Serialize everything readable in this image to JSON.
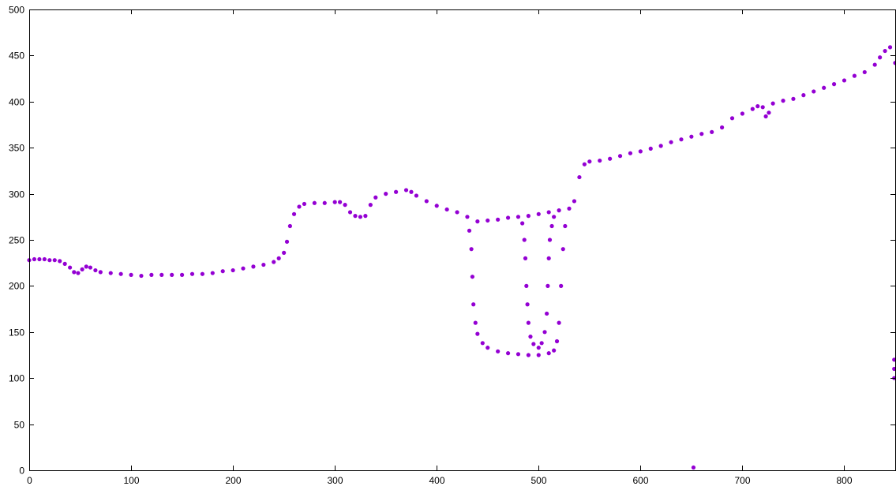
{
  "chart_data": {
    "type": "scatter",
    "title": "",
    "xlabel": "",
    "ylabel": "",
    "xlim": [
      0,
      850
    ],
    "ylim": [
      0,
      500
    ],
    "xticks": [
      0,
      100,
      200,
      300,
      400,
      500,
      600,
      700,
      800
    ],
    "yticks": [
      0,
      50,
      100,
      150,
      200,
      250,
      300,
      350,
      400,
      450,
      500
    ],
    "grid": false,
    "legend": "none",
    "series": [
      {
        "color": "#9400d3",
        "marker": "dot",
        "points": [
          [
            0,
            228
          ],
          [
            5,
            229
          ],
          [
            10,
            229
          ],
          [
            15,
            229
          ],
          [
            20,
            228
          ],
          [
            25,
            228
          ],
          [
            30,
            227
          ],
          [
            35,
            224
          ],
          [
            40,
            220
          ],
          [
            44,
            215
          ],
          [
            48,
            214
          ],
          [
            52,
            218
          ],
          [
            56,
            221
          ],
          [
            60,
            220
          ],
          [
            65,
            217
          ],
          [
            70,
            215
          ],
          [
            80,
            214
          ],
          [
            90,
            213
          ],
          [
            100,
            212
          ],
          [
            110,
            211
          ],
          [
            120,
            212
          ],
          [
            130,
            212
          ],
          [
            140,
            212
          ],
          [
            150,
            212
          ],
          [
            160,
            213
          ],
          [
            170,
            213
          ],
          [
            180,
            214
          ],
          [
            190,
            216
          ],
          [
            200,
            217
          ],
          [
            210,
            219
          ],
          [
            220,
            221
          ],
          [
            230,
            223
          ],
          [
            240,
            226
          ],
          [
            245,
            230
          ],
          [
            250,
            236
          ],
          [
            253,
            248
          ],
          [
            256,
            265
          ],
          [
            260,
            278
          ],
          [
            265,
            286
          ],
          [
            270,
            289
          ],
          [
            280,
            290
          ],
          [
            290,
            290
          ],
          [
            300,
            291
          ],
          [
            305,
            291
          ],
          [
            310,
            288
          ],
          [
            315,
            280
          ],
          [
            320,
            276
          ],
          [
            325,
            275
          ],
          [
            330,
            276
          ],
          [
            335,
            288
          ],
          [
            340,
            296
          ],
          [
            350,
            300
          ],
          [
            360,
            302
          ],
          [
            370,
            304
          ],
          [
            375,
            302
          ],
          [
            380,
            298
          ],
          [
            390,
            292
          ],
          [
            400,
            287
          ],
          [
            410,
            283
          ],
          [
            420,
            280
          ],
          [
            430,
            275
          ],
          [
            440,
            270
          ],
          [
            450,
            271
          ],
          [
            460,
            272
          ],
          [
            470,
            274
          ],
          [
            480,
            275
          ],
          [
            490,
            276
          ],
          [
            500,
            278
          ],
          [
            510,
            280
          ],
          [
            520,
            282
          ],
          [
            530,
            284
          ],
          [
            535,
            292
          ],
          [
            540,
            318
          ],
          [
            545,
            332
          ],
          [
            550,
            335
          ],
          [
            560,
            336
          ],
          [
            570,
            338
          ],
          [
            580,
            341
          ],
          [
            590,
            344
          ],
          [
            600,
            346
          ],
          [
            610,
            349
          ],
          [
            620,
            352
          ],
          [
            630,
            356
          ],
          [
            640,
            359
          ],
          [
            650,
            362
          ],
          [
            660,
            365
          ],
          [
            670,
            367
          ],
          [
            680,
            372
          ],
          [
            690,
            382
          ],
          [
            700,
            387
          ],
          [
            710,
            392
          ],
          [
            715,
            395
          ],
          [
            720,
            394
          ],
          [
            723,
            384
          ],
          [
            726,
            388
          ],
          [
            730,
            398
          ],
          [
            740,
            401
          ],
          [
            750,
            403
          ],
          [
            760,
            407
          ],
          [
            770,
            411
          ],
          [
            780,
            415
          ],
          [
            790,
            419
          ],
          [
            800,
            423
          ],
          [
            810,
            428
          ],
          [
            820,
            432
          ],
          [
            830,
            440
          ],
          [
            835,
            448
          ],
          [
            840,
            455
          ],
          [
            845,
            459
          ],
          [
            850,
            442
          ],
          [
            432,
            260
          ],
          [
            434,
            240
          ],
          [
            435,
            210
          ],
          [
            436,
            180
          ],
          [
            438,
            160
          ],
          [
            440,
            148
          ],
          [
            445,
            138
          ],
          [
            450,
            133
          ],
          [
            460,
            129
          ],
          [
            470,
            127
          ],
          [
            480,
            126
          ],
          [
            490,
            125
          ],
          [
            500,
            125
          ],
          [
            510,
            127
          ],
          [
            515,
            130
          ],
          [
            518,
            140
          ],
          [
            520,
            160
          ],
          [
            522,
            200
          ],
          [
            524,
            240
          ],
          [
            526,
            265
          ],
          [
            484,
            268
          ],
          [
            486,
            250
          ],
          [
            487,
            230
          ],
          [
            488,
            200
          ],
          [
            489,
            180
          ],
          [
            490,
            160
          ],
          [
            492,
            145
          ],
          [
            495,
            137
          ],
          [
            500,
            133
          ],
          [
            503,
            138
          ],
          [
            506,
            150
          ],
          [
            508,
            170
          ],
          [
            509,
            200
          ],
          [
            510,
            230
          ],
          [
            511,
            250
          ],
          [
            513,
            265
          ],
          [
            515,
            275
          ],
          [
            652,
            3
          ],
          [
            849,
            120
          ],
          [
            849,
            110
          ],
          [
            849,
            100
          ]
        ]
      }
    ]
  }
}
